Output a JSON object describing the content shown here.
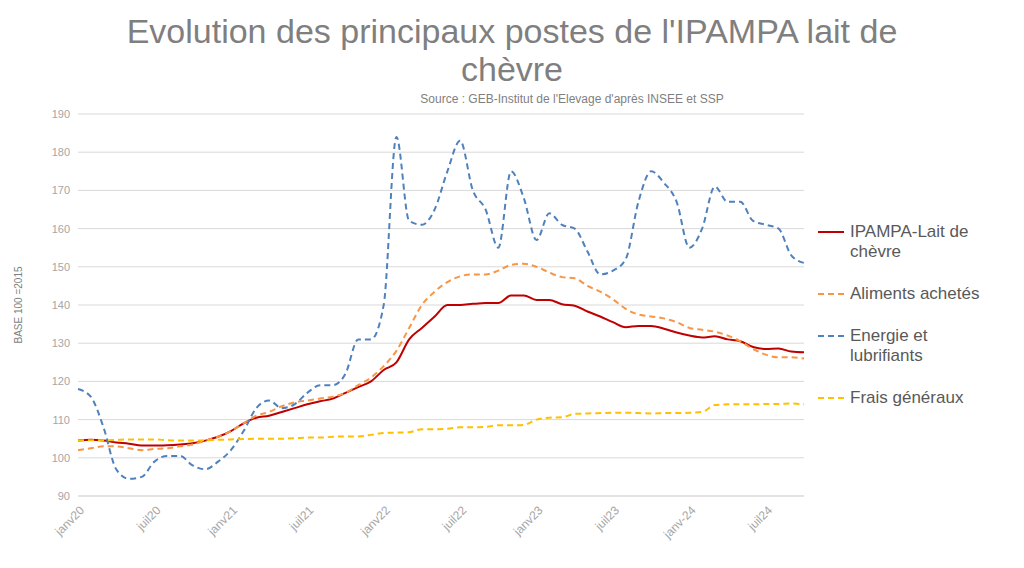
{
  "chart_data": {
    "type": "line",
    "title": "Evolution des principaux postes de l'IPAMPA lait de chèvre",
    "subtitle": "Source : GEB-Institut de l'Elevage d'après INSEE et SSP",
    "y_label": "BASE 100 =2015",
    "categories": [
      "janv20",
      null,
      null,
      null,
      null,
      null,
      "juil20",
      null,
      null,
      null,
      null,
      null,
      "janv21",
      null,
      null,
      null,
      null,
      null,
      "juil21",
      null,
      null,
      null,
      null,
      null,
      "janv22",
      null,
      null,
      null,
      null,
      null,
      "juil22",
      null,
      null,
      null,
      null,
      null,
      "janv23",
      null,
      null,
      null,
      null,
      null,
      "juil23",
      null,
      null,
      null,
      null,
      null,
      "janv-24",
      null,
      null,
      null,
      null,
      null,
      "juil24",
      null,
      null,
      null
    ],
    "series": [
      {
        "name": "IPAMPA-Lait de chèvre",
        "color": "#c00000",
        "line_style": "solid",
        "values": [
          104.5,
          104.7,
          104.5,
          104,
          103.7,
          103.2,
          103.2,
          103.3,
          103.5,
          103.8,
          104.5,
          105.5,
          107,
          109,
          110.5,
          111,
          112,
          113,
          114,
          114.8,
          115.5,
          117,
          118.5,
          120,
          123,
          125,
          131,
          134,
          137,
          140,
          140,
          140.3,
          140.5,
          140.5,
          142.5,
          142.5,
          141.3,
          141.3,
          140.2,
          139.8,
          138.3,
          137,
          135.5,
          134.2,
          134.5,
          134.5,
          133.8,
          132.8,
          132,
          131.5,
          131.8,
          131,
          130.5,
          129,
          128.5,
          128.6,
          127.8,
          127.6
        ]
      },
      {
        "name": "Aliments achetés",
        "color": "#f79646",
        "line_style": "dashed",
        "values": [
          102,
          102.5,
          103,
          103,
          102.5,
          102,
          102.3,
          102.5,
          103,
          103.5,
          104.5,
          105.5,
          107,
          109,
          111,
          112,
          113.5,
          114.5,
          115,
          115.5,
          116,
          117,
          119,
          121,
          124,
          128,
          134,
          140,
          143.5,
          146,
          147.5,
          148,
          148,
          149,
          150.5,
          150.8,
          150,
          148.5,
          147.3,
          147,
          145,
          143.5,
          141.5,
          139,
          137.5,
          137,
          136.5,
          135.5,
          134,
          133.5,
          133,
          132,
          130.5,
          128.5,
          127,
          126.3,
          126.3,
          126
        ]
      },
      {
        "name": "Energie et lubrifiants",
        "color": "#4f81bd",
        "line_style": "dashed",
        "values": [
          118,
          116,
          108,
          97,
          94.5,
          95,
          99,
          100.5,
          100.5,
          98,
          97,
          99,
          102,
          107,
          113,
          115,
          113,
          114,
          117,
          119,
          119,
          122,
          131,
          131,
          140,
          184,
          162,
          161,
          165,
          175,
          183,
          170,
          165,
          155,
          175,
          168,
          157,
          164,
          161,
          160,
          154,
          148,
          149,
          152,
          167,
          175,
          172,
          167,
          155,
          160,
          171,
          167,
          167,
          162,
          161,
          160,
          153,
          151
        ]
      },
      {
        "name": "Frais généraux",
        "color": "#ffc000",
        "line_style": "dashed",
        "values": [
          104.5,
          104.6,
          104.6,
          104.7,
          104.8,
          104.8,
          104.8,
          104.6,
          104.5,
          104.5,
          104.6,
          104.7,
          104.8,
          104.9,
          105,
          105,
          105,
          105.1,
          105.3,
          105.3,
          105.5,
          105.6,
          105.6,
          106,
          106.5,
          106.6,
          106.7,
          107.5,
          107.5,
          107.6,
          108,
          108,
          108.1,
          108.5,
          108.5,
          108.6,
          110,
          110.5,
          110.6,
          111.5,
          111.6,
          111.7,
          111.8,
          111.8,
          111.7,
          111.6,
          111.7,
          111.7,
          111.8,
          112,
          113.8,
          114,
          114,
          114,
          114.1,
          114.1,
          114.2,
          114
        ]
      }
    ],
    "ylim": [
      90,
      190
    ],
    "yticks": [
      90,
      100,
      110,
      120,
      130,
      140,
      150,
      160,
      170,
      180,
      190
    ],
    "grid": true,
    "legend": "right"
  }
}
